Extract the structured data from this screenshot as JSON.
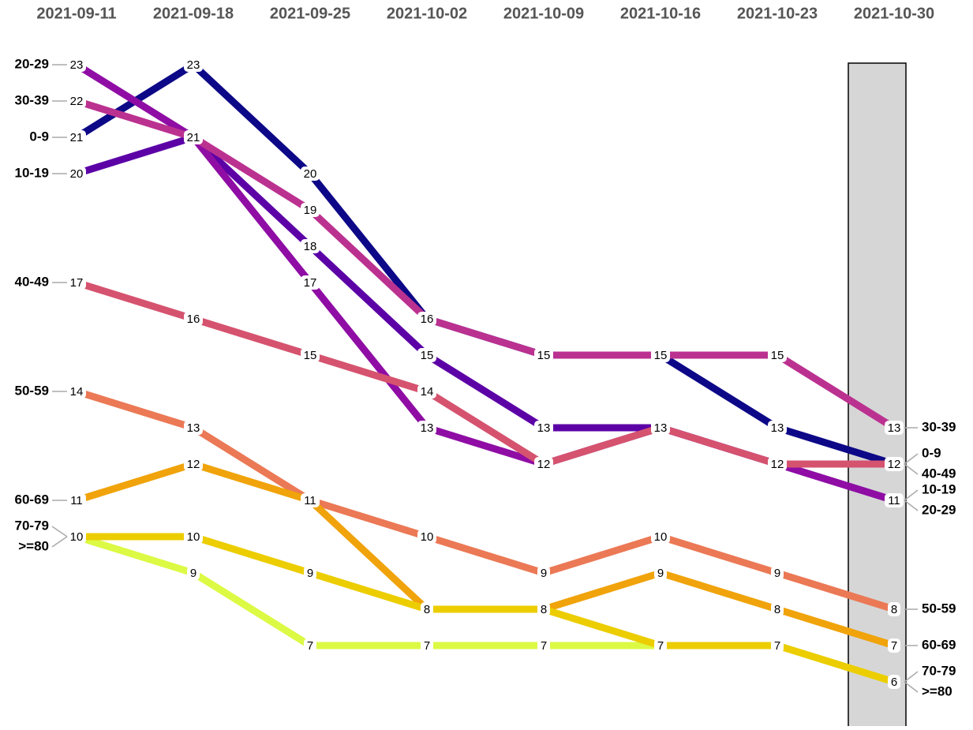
{
  "chart_data": {
    "type": "bump",
    "x": [
      "2021-09-11",
      "2021-09-18",
      "2021-09-25",
      "2021-10-02",
      "2021-10-09",
      "2021-10-16",
      "2021-10-23",
      "2021-10-30"
    ],
    "highlight": "2021-10-30",
    "series": [
      {
        "name": "0-9",
        "color": "#0d0887",
        "values": [
          21,
          23,
          20,
          16,
          15,
          15,
          13,
          12
        ]
      },
      {
        "name": "10-19",
        "color": "#5c01a6",
        "values": [
          20,
          21,
          18,
          15,
          13,
          13,
          12,
          11
        ]
      },
      {
        "name": "20-29",
        "color": "#8f0da4",
        "values": [
          23,
          21,
          17,
          13,
          12,
          13,
          12,
          11
        ]
      },
      {
        "name": "30-39",
        "color": "#bb3190",
        "values": [
          22,
          21,
          19,
          16,
          15,
          15,
          15,
          13
        ]
      },
      {
        "name": "40-49",
        "color": "#d5536f",
        "values": [
          17,
          16,
          15,
          14,
          12,
          13,
          12,
          12
        ]
      },
      {
        "name": "50-59",
        "color": "#eb7955",
        "values": [
          14,
          13,
          11,
          10,
          9,
          10,
          9,
          8
        ]
      },
      {
        "name": "60-69",
        "color": "#f0a30a",
        "values": [
          11,
          12,
          11,
          8,
          8,
          9,
          8,
          7
        ]
      },
      {
        "name": "70-79",
        "color": "#dcf944",
        "values": [
          10,
          9,
          7,
          7,
          7,
          7,
          7,
          6
        ]
      },
      {
        "name": ">=80",
        "color": "#eccd00",
        "values": [
          10,
          10,
          9,
          8,
          8,
          7,
          7,
          6
        ]
      }
    ]
  }
}
